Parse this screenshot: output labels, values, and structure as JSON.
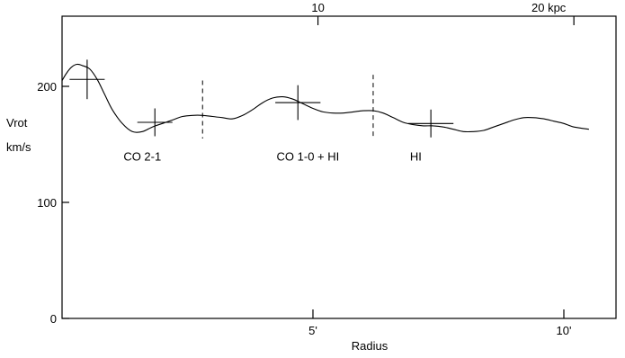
{
  "chart_data": {
    "type": "line",
    "title": "",
    "xlabel": "Radius",
    "ylabel": [
      "Vrot",
      "km/s"
    ],
    "xlim": [
      0,
      11
    ],
    "ylim": [
      0,
      260
    ],
    "bottom_ticks": [
      {
        "value": 5,
        "label": "5'"
      },
      {
        "value": 10,
        "label": "10'"
      }
    ],
    "top_ticks": [
      {
        "value": 5.1,
        "label": "10"
      },
      {
        "value": 10.2,
        "label": "20 kpc"
      }
    ],
    "y_ticks": [
      0,
      100,
      200
    ],
    "grid": false,
    "curve": {
      "x": [
        0.0,
        0.1,
        0.2,
        0.3,
        0.4,
        0.55,
        0.7,
        0.85,
        1.0,
        1.2,
        1.4,
        1.6,
        1.8,
        2.0,
        2.2,
        2.4,
        2.6,
        2.8,
        3.0,
        3.2,
        3.4,
        3.6,
        3.8,
        4.0,
        4.2,
        4.4,
        4.6,
        4.8,
        5.0,
        5.2,
        5.4,
        5.6,
        5.8,
        6.0,
        6.2,
        6.4,
        6.6,
        6.8,
        7.0,
        7.2,
        7.4,
        7.6,
        7.8,
        8.0,
        8.2,
        8.4,
        8.6,
        8.8,
        9.0,
        9.2,
        9.4,
        9.6,
        9.8,
        10.0,
        10.2,
        10.5
      ],
      "y": [
        205,
        212,
        217,
        219,
        218,
        215,
        206,
        193,
        180,
        168,
        161,
        161,
        165,
        168,
        171,
        174,
        175,
        175,
        174,
        173,
        172,
        175,
        180,
        186,
        190,
        191,
        189,
        185,
        181,
        178,
        177,
        177,
        178,
        179,
        179,
        177,
        173,
        169,
        167,
        166,
        166,
        165,
        163,
        161,
        161,
        162,
        165,
        168,
        171,
        173,
        173,
        172,
        170,
        168,
        165,
        163
      ]
    },
    "error_crosses": [
      {
        "x": 0.5,
        "y": 206,
        "xerr": 0.35,
        "yerr": 17
      },
      {
        "x": 1.85,
        "y": 169,
        "xerr": 0.35,
        "yerr": 12
      },
      {
        "x": 4.7,
        "y": 186,
        "xerr": 0.45,
        "yerr": 15
      },
      {
        "x": 7.35,
        "y": 168,
        "xerr": 0.45,
        "yerr": 12
      }
    ],
    "dividers": [
      {
        "x": 2.8,
        "y_from": 155,
        "y_to": 205
      },
      {
        "x": 6.2,
        "y_from": 155,
        "y_to": 210
      }
    ],
    "annotations": [
      {
        "text": "CO 2-1",
        "x": 1.6,
        "y": 136
      },
      {
        "text": "CO 1-0  + HI",
        "x": 4.9,
        "y": 136
      },
      {
        "text": "HI",
        "x": 7.05,
        "y": 136
      }
    ]
  }
}
